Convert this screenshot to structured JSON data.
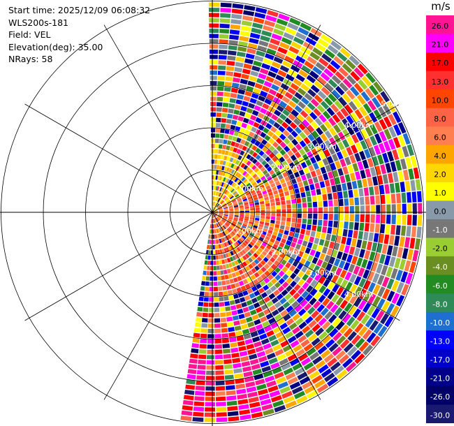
{
  "header": {
    "start_time": "Start time: 2025/12/09 06:08:32",
    "instrument": "WLS200s-181",
    "field": "Field: VEL",
    "elevation": "Elevation(deg): 35.00",
    "nrays": "NRays: 58"
  },
  "range_rings": {
    "right_labels": [
      "1.00km",
      "2.00km",
      "3.00km",
      "4.00km",
      "5.00km"
    ],
    "lower_right_labels": [
      "1.00km",
      "2.00km",
      "3.00km",
      "4.00km"
    ]
  },
  "colorbar": {
    "unit": "m/s",
    "levels": [
      "26.0",
      "21.0",
      "17.0",
      "13.0",
      "10.0",
      "8.0",
      "6.0",
      "4.0",
      "2.0",
      "1.0",
      "0.0",
      "-1.0",
      "-2.0",
      "-4.0",
      "-6.0",
      "-8.0",
      "-10.0",
      "-13.0",
      "-17.0",
      "-21.0",
      "-26.0",
      "-30.0"
    ],
    "colors": [
      "#ff1493",
      "#ff00ff",
      "#ff0000",
      "#ff3030",
      "#ff4500",
      "#ff6347",
      "#ff7f50",
      "#ffa500",
      "#ffd700",
      "#ffff00",
      "#8899aa",
      "#777777",
      "#9acd32",
      "#6b8e23",
      "#228b22",
      "#2e8b57",
      "#1e6fd0",
      "#0000ff",
      "#0000cd",
      "#00008b",
      "#000066",
      "#191970"
    ]
  }
}
